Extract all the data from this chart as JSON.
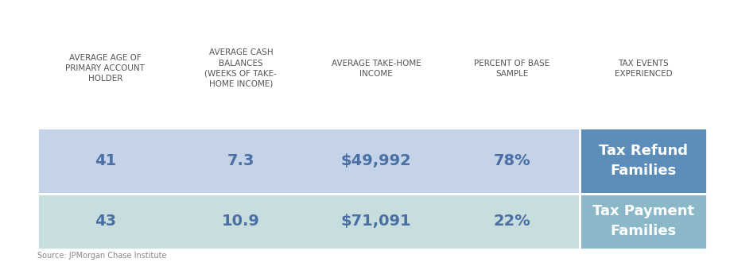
{
  "headers": [
    "AVERAGE AGE OF\nPRIMARY ACCOUNT\nHOLDER",
    "AVERAGE CASH\nBALANCES\n(WEEKS OF TAKE-\nHOME INCOME)",
    "AVERAGE TAKE-HOME\nINCOME",
    "PERCENT OF BASE\nSAMPLE",
    "TAX EVENTS\nEXPERIENCED"
  ],
  "rows": [
    {
      "label": "Tax Refund\nFamilies",
      "values": [
        "41",
        "7.3",
        "$49,992",
        "78%"
      ],
      "row_color": "#c5d3e8",
      "label_color": "#5b8db8"
    },
    {
      "label": "Tax Payment\nFamilies",
      "values": [
        "43",
        "10.9",
        "$71,091",
        "22%"
      ],
      "row_color": "#c8dede",
      "label_color": "#8ab8c8"
    }
  ],
  "background_color": "#ffffff",
  "header_text_color": "#555555",
  "cell_text_color": "#4a6fa5",
  "source_text": "Source: JPMorgan Chase Institute",
  "header_fontsize": 7.5,
  "cell_fontsize": 14,
  "label_fontsize": 13
}
